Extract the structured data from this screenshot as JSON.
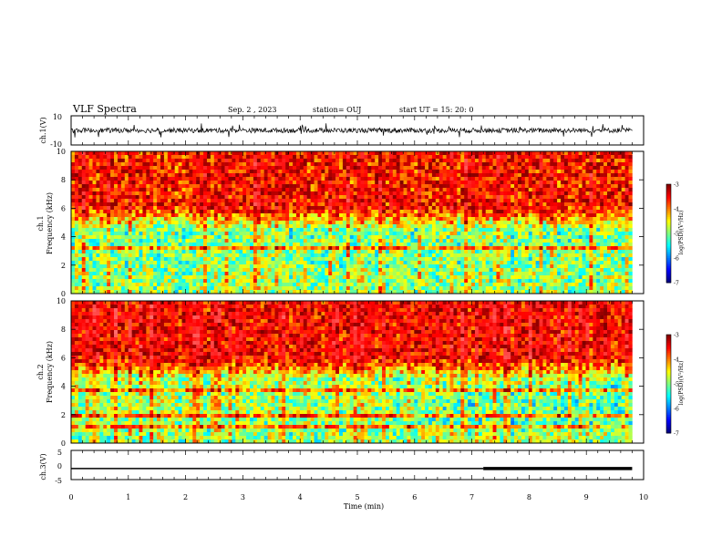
{
  "header": {
    "title": "VLF Spectra",
    "date": "Sep. 2 , 2023",
    "station": "station= OUJ",
    "start": "start UT =  15: 20: 0"
  },
  "chart_data": [
    {
      "type": "line",
      "ylabel": "ch.1(V)",
      "ylim": [
        -10,
        10
      ],
      "yticks": [
        "10",
        "-10"
      ],
      "description_values": {
        "baseline": 0,
        "typical_noise_amplitude": 3
      },
      "color": "#000000"
    },
    {
      "type": "heatmap",
      "ylabel_line1": "ch.1",
      "ylabel_line2": "Frequency (kHz)",
      "ylim": [
        0,
        10
      ],
      "yticks": [
        "0",
        "2",
        "4",
        "6",
        "8",
        "10"
      ],
      "colorbar": {
        "label": "log(PSD)(V²/Hz)",
        "range": [
          -7,
          -3
        ],
        "ticks": [
          "-3",
          "-4",
          "-5",
          "-6",
          "-7"
        ]
      },
      "upper_band_level": -3.5,
      "mid_band_level": -5,
      "lower_band_level": -5.5
    },
    {
      "type": "heatmap",
      "ylabel_line1": "ch.2",
      "ylabel_line2": "Frequency (kHz)",
      "ylim": [
        0,
        10
      ],
      "yticks": [
        "0",
        "2",
        "4",
        "6",
        "8",
        "10"
      ],
      "colorbar": {
        "label": "log(PSD)(V²/Hz)",
        "range": [
          -7,
          -3
        ],
        "ticks": [
          "-3",
          "-4",
          "-5",
          "-6",
          "-7"
        ]
      },
      "upper_band_level": -3.3,
      "mid_band_level": -4.8,
      "lower_band_level": -5.5
    },
    {
      "type": "line",
      "ylabel": "ch.3(V)",
      "ylim": [
        -5,
        5
      ],
      "yticks": [
        "5",
        "0",
        "-5"
      ],
      "x": [
        0,
        7.2,
        7.2,
        9.8
      ],
      "y": [
        -1.2,
        -1.2,
        -1.2,
        -1.2
      ],
      "thick_from": 7.2,
      "color": "#000000"
    }
  ],
  "x_axis": {
    "label": "Time (min)",
    "range": [
      0,
      10
    ],
    "ticks": [
      "0",
      "1",
      "2",
      "3",
      "4",
      "5",
      "6",
      "7",
      "8",
      "9",
      "10"
    ],
    "data_end": 9.8
  }
}
